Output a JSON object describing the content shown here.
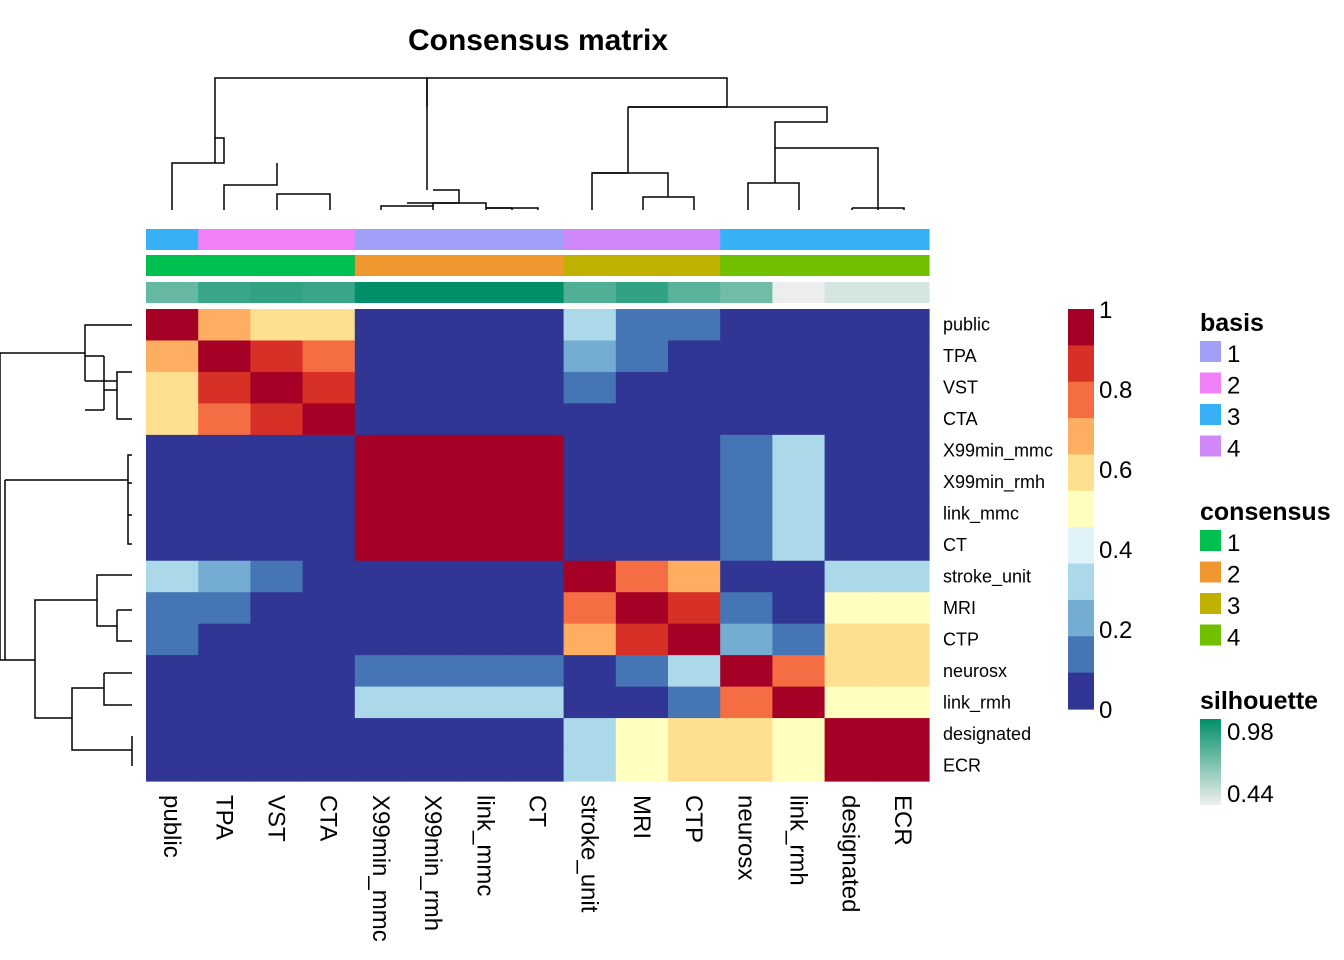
{
  "chart_data": {
    "type": "heatmap",
    "title": "Consensus matrix",
    "columns": [
      "public",
      "TPA",
      "VST",
      "CTA",
      "X99min_mmc",
      "X99min_rmh",
      "link_mmc",
      "CT",
      "stroke_unit",
      "MRI",
      "CTP",
      "neurosx",
      "link_rmh",
      "designated",
      "ECR"
    ],
    "rows": [
      "public",
      "TPA",
      "VST",
      "CTA",
      "X99min_mmc",
      "X99min_rmh",
      "link_mmc",
      "CT",
      "stroke_unit",
      "MRI",
      "CTP",
      "neurosx",
      "link_rmh",
      "designated",
      "ECR"
    ],
    "values": [
      [
        1.0,
        0.7,
        0.6,
        0.6,
        0,
        0,
        0,
        0,
        0.3,
        0.1,
        0.1,
        0,
        0,
        0,
        0
      ],
      [
        0.7,
        1.0,
        0.9,
        0.8,
        0,
        0,
        0,
        0,
        0.2,
        0.1,
        0,
        0,
        0,
        0,
        0
      ],
      [
        0.6,
        0.9,
        1.0,
        0.9,
        0,
        0,
        0,
        0,
        0.1,
        0,
        0,
        0,
        0,
        0,
        0
      ],
      [
        0.6,
        0.8,
        0.9,
        1.0,
        0,
        0,
        0,
        0,
        0,
        0,
        0,
        0,
        0,
        0,
        0
      ],
      [
        0,
        0,
        0,
        0,
        1.0,
        1.0,
        1.0,
        1.0,
        0,
        0,
        0,
        0.1,
        0.3,
        0,
        0
      ],
      [
        0,
        0,
        0,
        0,
        1.0,
        1.0,
        1.0,
        1.0,
        0,
        0,
        0,
        0.1,
        0.3,
        0,
        0
      ],
      [
        0,
        0,
        0,
        0,
        1.0,
        1.0,
        1.0,
        1.0,
        0,
        0,
        0,
        0.1,
        0.3,
        0,
        0
      ],
      [
        0,
        0,
        0,
        0,
        1.0,
        1.0,
        1.0,
        1.0,
        0,
        0,
        0,
        0.1,
        0.3,
        0,
        0
      ],
      [
        0.3,
        0.2,
        0.1,
        0,
        0,
        0,
        0,
        0,
        1.0,
        0.8,
        0.7,
        0,
        0,
        0.3,
        0.3
      ],
      [
        0.1,
        0.1,
        0,
        0,
        0,
        0,
        0,
        0,
        0.8,
        1.0,
        0.9,
        0.1,
        0,
        0.5,
        0.5
      ],
      [
        0.1,
        0,
        0,
        0,
        0,
        0,
        0,
        0,
        0.7,
        0.9,
        1.0,
        0.2,
        0.1,
        0.55,
        0.55
      ],
      [
        0,
        0,
        0,
        0,
        0.1,
        0.1,
        0.1,
        0.1,
        0,
        0.1,
        0.25,
        1.0,
        0.8,
        0.6,
        0.6
      ],
      [
        0,
        0,
        0,
        0,
        0.3,
        0.3,
        0.3,
        0.3,
        0,
        0,
        0.1,
        0.8,
        1.0,
        0.5,
        0.5
      ],
      [
        0,
        0,
        0,
        0,
        0,
        0,
        0,
        0,
        0.3,
        0.5,
        0.55,
        0.6,
        0.5,
        1.0,
        1.0
      ],
      [
        0,
        0,
        0,
        0,
        0,
        0,
        0,
        0,
        0.3,
        0.5,
        0.55,
        0.6,
        0.5,
        1.0,
        1.0
      ]
    ],
    "annotations": {
      "basis": [
        3,
        2,
        2,
        2,
        1,
        1,
        1,
        1,
        4,
        4,
        4,
        3,
        3,
        3,
        3
      ],
      "consensus": [
        1,
        1,
        1,
        1,
        2,
        2,
        2,
        2,
        3,
        3,
        3,
        4,
        4,
        4,
        4
      ],
      "silhouette": [
        0.75,
        0.85,
        0.87,
        0.85,
        0.98,
        0.98,
        0.98,
        0.98,
        0.8,
        0.87,
        0.78,
        0.73,
        0.45,
        0.5,
        0.5
      ]
    },
    "color_scale": {
      "ticks": [
        "0",
        "0.2",
        "0.4",
        "0.6",
        "0.8",
        "1"
      ],
      "colors": [
        "#313695",
        "#4575b4",
        "#74add1",
        "#abd9e9",
        "#e0f3f8",
        "#ffffbf",
        "#fee090",
        "#fdae61",
        "#f46d43",
        "#d73027",
        "#a50026"
      ]
    },
    "legends": {
      "basis": {
        "title": "basis",
        "items": [
          {
            "label": "1",
            "color": "#a0a0f8"
          },
          {
            "label": "2",
            "color": "#f080f8"
          },
          {
            "label": "3",
            "color": "#38b0f8"
          },
          {
            "label": "4",
            "color": "#d088f8"
          }
        ]
      },
      "consensus": {
        "title": "consensus",
        "items": [
          {
            "label": "1",
            "color": "#00c050"
          },
          {
            "label": "2",
            "color": "#f09830"
          },
          {
            "label": "3",
            "color": "#c0b000"
          },
          {
            "label": "4",
            "color": "#70c000"
          }
        ]
      },
      "silhouette": {
        "title": "silhouette",
        "max_label": "0.98",
        "min_label": "0.44",
        "max_color": "#008f68",
        "min_color": "#f0f0f0"
      }
    }
  }
}
